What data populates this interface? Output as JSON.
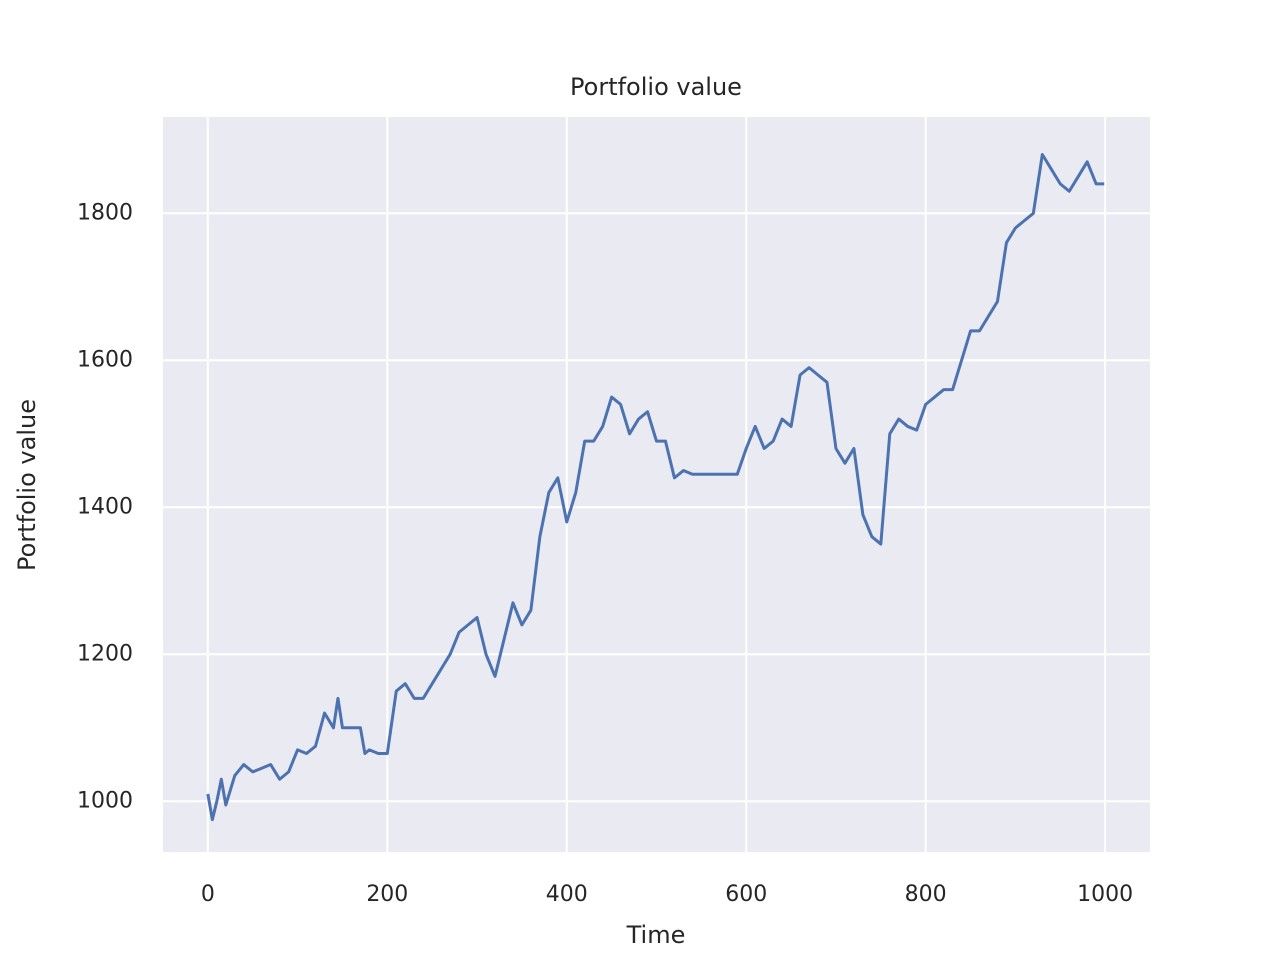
{
  "chart_data": {
    "type": "line",
    "title": "Portfolio value",
    "xlabel": "Time",
    "ylabel": "Portfolio value",
    "x": [
      0,
      5,
      10,
      15,
      20,
      30,
      40,
      50,
      60,
      70,
      80,
      90,
      100,
      110,
      120,
      130,
      140,
      145,
      150,
      160,
      170,
      175,
      180,
      190,
      200,
      210,
      220,
      230,
      240,
      250,
      260,
      270,
      280,
      290,
      300,
      310,
      320,
      330,
      340,
      350,
      360,
      370,
      380,
      390,
      400,
      410,
      420,
      430,
      440,
      450,
      460,
      470,
      480,
      490,
      500,
      510,
      520,
      530,
      540,
      550,
      560,
      570,
      580,
      590,
      600,
      610,
      620,
      630,
      640,
      650,
      660,
      670,
      680,
      690,
      700,
      710,
      720,
      730,
      740,
      750,
      760,
      770,
      780,
      790,
      800,
      810,
      820,
      830,
      840,
      850,
      860,
      870,
      880,
      890,
      900,
      910,
      920,
      930,
      940,
      950,
      960,
      970,
      980,
      990,
      999
    ],
    "series": [
      {
        "name": "Portfolio value",
        "color": "#4c72b0",
        "values": [
          1010,
          975,
          1000,
          1030,
          995,
          1035,
          1050,
          1040,
          1045,
          1050,
          1030,
          1040,
          1070,
          1065,
          1075,
          1120,
          1100,
          1140,
          1100,
          1100,
          1100,
          1065,
          1070,
          1065,
          1065,
          1150,
          1160,
          1140,
          1140,
          1160,
          1180,
          1200,
          1230,
          1240,
          1250,
          1200,
          1170,
          1220,
          1270,
          1240,
          1260,
          1360,
          1420,
          1440,
          1380,
          1420,
          1490,
          1490,
          1510,
          1550,
          1540,
          1500,
          1520,
          1530,
          1490,
          1490,
          1440,
          1450,
          1445,
          1445,
          1445,
          1445,
          1445,
          1445,
          1480,
          1510,
          1480,
          1490,
          1520,
          1510,
          1580,
          1590,
          1580,
          1570,
          1480,
          1460,
          1480,
          1390,
          1360,
          1350,
          1500,
          1520,
          1510,
          1505,
          1540,
          1550,
          1560,
          1560,
          1600,
          1640,
          1640,
          1660,
          1680,
          1760,
          1780,
          1790,
          1800,
          1880,
          1860,
          1840,
          1830,
          1850,
          1870,
          1840,
          1840
        ]
      }
    ],
    "xlim": [
      -50,
      1050
    ],
    "xticks": [
      0,
      200,
      400,
      600,
      800,
      1000
    ],
    "ylim": [
      931,
      1931
    ],
    "yticks": [
      1000,
      1200,
      1400,
      1600,
      1800
    ],
    "grid": true
  }
}
